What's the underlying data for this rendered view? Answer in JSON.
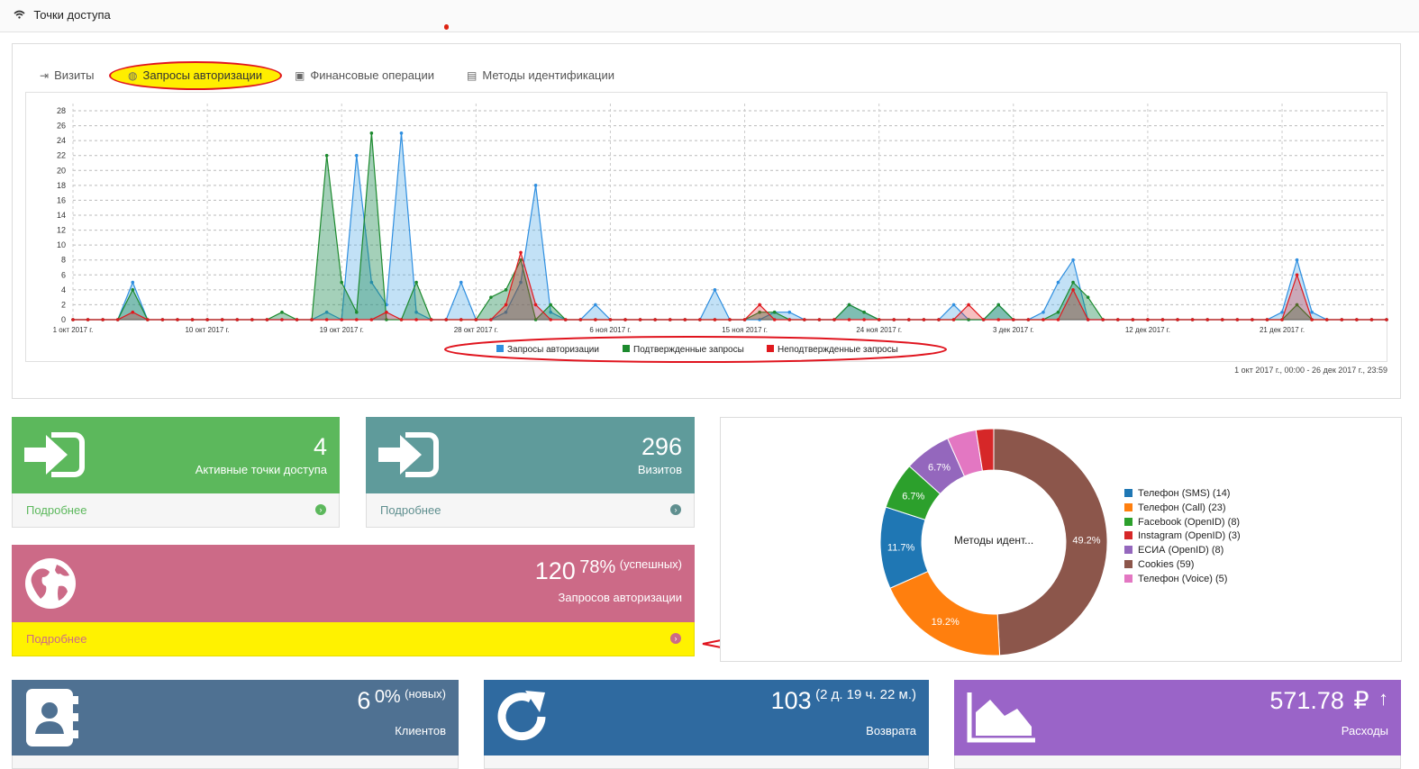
{
  "header": {
    "title": "Точки доступа"
  },
  "tabs": [
    {
      "label": "Визиты"
    },
    {
      "label": "Запросы авторизации"
    },
    {
      "label": "Финансовые операции"
    },
    {
      "label": "Методы идентификации"
    }
  ],
  "chart_data": {
    "type": "area",
    "yticks": [
      "0",
      "2",
      "4",
      "6",
      "8",
      "10",
      "12",
      "14",
      "16",
      "18",
      "20",
      "22",
      "24",
      "26",
      "28"
    ],
    "xticks": [
      "1 окт 2017 г.",
      "10 окт 2017 г.",
      "19 окт 2017 г.",
      "28 окт 2017 г.",
      "6 ноя 2017 г.",
      "15 ноя 2017 г.",
      "24 ноя 2017 г.",
      "3 дек 2017 г.",
      "12 дек 2017 г.",
      "21 дек 2017 г."
    ],
    "ylim": [
      0,
      28
    ],
    "x_start": "2017-10-01",
    "x_days": 88,
    "series": [
      {
        "name": "Запросы авторизации",
        "color": "#2f8fe0",
        "points": [
          [
            4,
            5
          ],
          [
            17,
            1
          ],
          [
            19,
            22
          ],
          [
            20,
            5
          ],
          [
            21,
            2
          ],
          [
            22,
            25
          ],
          [
            23,
            1
          ],
          [
            26,
            5
          ],
          [
            29,
            1
          ],
          [
            30,
            5
          ],
          [
            31,
            18
          ],
          [
            32,
            1
          ],
          [
            35,
            2
          ],
          [
            43,
            4
          ],
          [
            47,
            1
          ],
          [
            48,
            1
          ],
          [
            52,
            2
          ],
          [
            53,
            1
          ],
          [
            59,
            2
          ],
          [
            62,
            2
          ],
          [
            65,
            1
          ],
          [
            66,
            5
          ],
          [
            67,
            8
          ],
          [
            81,
            1
          ],
          [
            82,
            8
          ],
          [
            83,
            1
          ]
        ]
      },
      {
        "name": "Подтвержденные запросы",
        "color": "#1c8a2e",
        "points": [
          [
            4,
            4
          ],
          [
            14,
            1
          ],
          [
            17,
            22
          ],
          [
            18,
            5
          ],
          [
            19,
            1
          ],
          [
            20,
            1
          ],
          [
            20,
            25
          ],
          [
            23,
            5
          ],
          [
            28,
            3
          ],
          [
            29,
            4
          ],
          [
            30,
            8
          ],
          [
            32,
            2
          ],
          [
            46,
            1
          ],
          [
            47,
            1
          ],
          [
            52,
            2
          ],
          [
            53,
            1
          ],
          [
            62,
            2
          ],
          [
            66,
            1
          ],
          [
            67,
            5
          ],
          [
            68,
            3
          ],
          [
            82,
            1
          ],
          [
            82,
            2
          ]
        ]
      },
      {
        "name": "Неподтвержденные запросы",
        "color": "#e0191e",
        "points": [
          [
            4,
            1
          ],
          [
            21,
            1
          ],
          [
            29,
            2
          ],
          [
            30,
            9
          ],
          [
            31,
            2
          ],
          [
            46,
            2
          ],
          [
            60,
            2
          ],
          [
            67,
            4
          ],
          [
            82,
            6
          ]
        ]
      }
    ],
    "range_label": "1 окт 2017 г., 00:00 - 26 дек 2017 г., 23:59"
  },
  "tiles": {
    "active": {
      "value": "4",
      "label": "Активные точки доступа",
      "more": "Подробнее"
    },
    "visits": {
      "value": "296",
      "label": "Визитов",
      "more": "Подробнее"
    },
    "auth": {
      "value": "120",
      "percent": "78%",
      "note": "(успешных)",
      "label": "Запросов авторизации",
      "more": "Подробнее"
    },
    "clients": {
      "value": "6",
      "percent": "0%",
      "note": "(новых)",
      "label": "Клиентов"
    },
    "returns": {
      "value": "103",
      "note": "(2 д. 19 ч. 22 м.)",
      "label": "Возврата"
    },
    "expenses": {
      "value": "571.78",
      "currency": "₽",
      "arrow": "↑",
      "label": "Расходы"
    }
  },
  "pie": {
    "center_label": "Методы идент...",
    "slices": [
      {
        "label": "Телефон (SMS) (14)",
        "value": 14,
        "pct": "11.7%",
        "color": "#1f77b4"
      },
      {
        "label": "Телефон (Call) (23)",
        "value": 23,
        "pct": "19.2%",
        "color": "#ff7f0e"
      },
      {
        "label": "Facebook (OpenID) (8)",
        "value": 8,
        "pct": "6.7%",
        "color": "#2ca02c"
      },
      {
        "label": "Instagram (OpenID) (3)",
        "value": 3,
        "pct": "",
        "color": "#d62728"
      },
      {
        "label": "ЕСИА (OpenID) (8)",
        "value": 8,
        "pct": "6.7%",
        "color": "#9467bd"
      },
      {
        "label": "Cookies (59)",
        "value": 59,
        "pct": "49.2%",
        "color": "#8c564b"
      },
      {
        "label": "Телефон (Voice) (5)",
        "value": 5,
        "pct": "",
        "color": "#e377c2"
      }
    ]
  }
}
